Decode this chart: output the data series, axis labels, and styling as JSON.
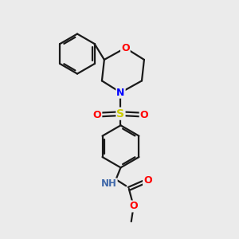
{
  "bg_color": "#ebebeb",
  "bond_color": "#1a1a1a",
  "bond_width": 1.6,
  "atom_colors": {
    "O": "#ff0000",
    "N": "#0000ff",
    "S": "#cccc00",
    "NH": "#4169aa",
    "C": "#1a1a1a"
  },
  "figsize": [
    3.0,
    3.0
  ],
  "dpi": 100
}
